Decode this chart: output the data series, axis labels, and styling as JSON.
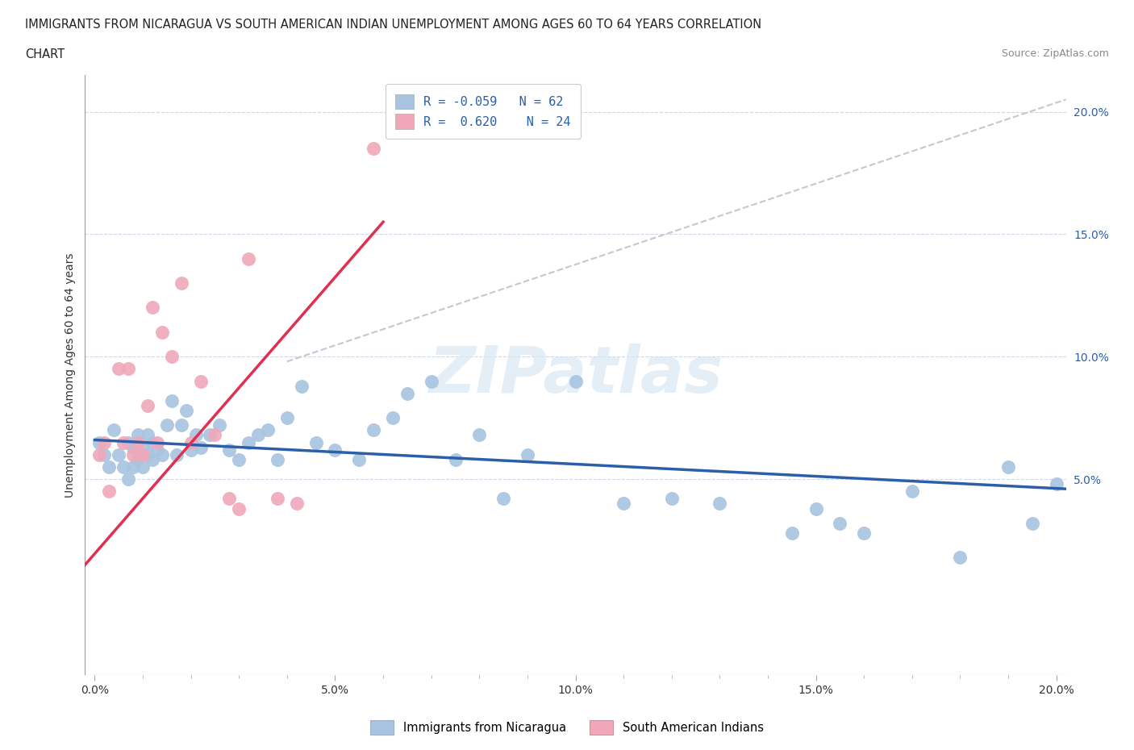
{
  "title_line1": "IMMIGRANTS FROM NICARAGUA VS SOUTH AMERICAN INDIAN UNEMPLOYMENT AMONG AGES 60 TO 64 YEARS CORRELATION",
  "title_line2": "CHART",
  "source_text": "Source: ZipAtlas.com",
  "ylabel": "Unemployment Among Ages 60 to 64 years",
  "xlim": [
    -0.002,
    0.202
  ],
  "ylim": [
    -0.03,
    0.215
  ],
  "x_ticks": [
    0.0,
    0.05,
    0.1,
    0.15,
    0.2
  ],
  "x_tick_labels": [
    "0.0%",
    "5.0%",
    "10.0%",
    "15.0%",
    "20.0%"
  ],
  "y_ticks_right": [
    0.05,
    0.1,
    0.15,
    0.2
  ],
  "y_tick_labels_right": [
    "5.0%",
    "10.0%",
    "15.0%",
    "20.0%"
  ],
  "blue_color": "#a8c4e0",
  "pink_color": "#f0a8b8",
  "blue_line_color": "#2b5faa",
  "pink_line_color": "#e03050",
  "gray_line_color": "#c8c8c8",
  "watermark_color": "#d8e8f5",
  "legend_R_blue": "-0.059",
  "legend_N_blue": "62",
  "legend_R_pink": "0.620",
  "legend_N_pink": "24",
  "legend_label_blue": "Immigrants from Nicaragua",
  "legend_label_pink": "South American Indians",
  "blue_scatter_x": [
    0.001,
    0.002,
    0.003,
    0.004,
    0.005,
    0.006,
    0.007,
    0.007,
    0.008,
    0.008,
    0.009,
    0.009,
    0.01,
    0.01,
    0.011,
    0.011,
    0.012,
    0.012,
    0.013,
    0.014,
    0.015,
    0.016,
    0.017,
    0.018,
    0.019,
    0.02,
    0.021,
    0.022,
    0.024,
    0.026,
    0.028,
    0.03,
    0.032,
    0.034,
    0.036,
    0.038,
    0.04,
    0.043,
    0.046,
    0.05,
    0.055,
    0.058,
    0.062,
    0.065,
    0.07,
    0.075,
    0.08,
    0.085,
    0.09,
    0.1,
    0.11,
    0.12,
    0.13,
    0.145,
    0.15,
    0.155,
    0.16,
    0.17,
    0.18,
    0.19,
    0.195,
    0.2
  ],
  "blue_scatter_y": [
    0.065,
    0.06,
    0.055,
    0.07,
    0.06,
    0.055,
    0.05,
    0.065,
    0.055,
    0.063,
    0.058,
    0.068,
    0.055,
    0.063,
    0.06,
    0.068,
    0.058,
    0.065,
    0.062,
    0.06,
    0.072,
    0.082,
    0.06,
    0.072,
    0.078,
    0.062,
    0.068,
    0.063,
    0.068,
    0.072,
    0.062,
    0.058,
    0.065,
    0.068,
    0.07,
    0.058,
    0.075,
    0.088,
    0.065,
    0.062,
    0.058,
    0.07,
    0.075,
    0.085,
    0.09,
    0.058,
    0.068,
    0.042,
    0.06,
    0.09,
    0.04,
    0.042,
    0.04,
    0.028,
    0.038,
    0.032,
    0.028,
    0.045,
    0.018,
    0.055,
    0.032,
    0.048
  ],
  "pink_scatter_x": [
    0.001,
    0.002,
    0.003,
    0.005,
    0.006,
    0.007,
    0.008,
    0.009,
    0.01,
    0.011,
    0.012,
    0.013,
    0.014,
    0.016,
    0.018,
    0.02,
    0.022,
    0.025,
    0.028,
    0.03,
    0.032,
    0.038,
    0.042,
    0.058
  ],
  "pink_scatter_y": [
    0.06,
    0.065,
    0.045,
    0.095,
    0.065,
    0.095,
    0.06,
    0.065,
    0.06,
    0.08,
    0.12,
    0.065,
    0.11,
    0.1,
    0.13,
    0.065,
    0.09,
    0.068,
    0.042,
    0.038,
    0.14,
    0.042,
    0.04,
    0.185
  ],
  "blue_trendline_x": [
    0.0,
    0.202
  ],
  "blue_trendline_y": [
    0.066,
    0.046
  ],
  "pink_trendline_x": [
    -0.002,
    0.06
  ],
  "pink_trendline_y": [
    0.015,
    0.155
  ],
  "gray_trendline_x": [
    0.04,
    0.202
  ],
  "gray_trendline_y": [
    0.098,
    0.205
  ]
}
